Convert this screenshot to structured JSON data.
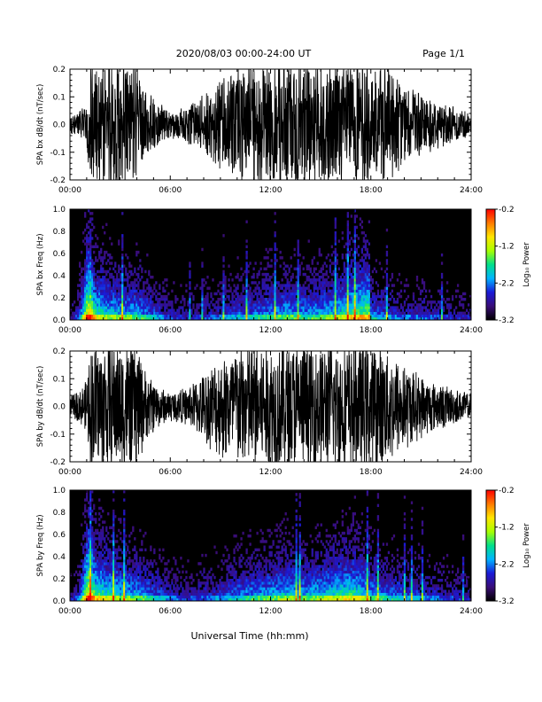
{
  "header": {
    "title": "2020/08/03  00:00-24:00 UT",
    "page": "Page 1/1"
  },
  "x_axis_label": "Universal Time (hh:mm)",
  "colors": {
    "trace": "#000000",
    "spectrogram_background": "#000000",
    "colormap": [
      "#000000",
      "#3a0d78",
      "#1a1ad8",
      "#00b4ff",
      "#00e08a",
      "#a8ff00",
      "#ffe600",
      "#ff7a00",
      "#ff0000"
    ]
  },
  "chart_data": [
    {
      "type": "line",
      "name": "bx-waveform",
      "ylabel": "SPA bx dB/dt (nT/sec)",
      "ylim": [
        -0.2,
        0.2
      ],
      "yticks": [
        "-0.2",
        "-0.1",
        "0.0",
        "0.1",
        "0.2"
      ],
      "xlim_hours": [
        0,
        24
      ],
      "xticks": [
        "00:00",
        "06:00",
        "12:00",
        "18:00",
        "24:00"
      ],
      "envelope_hours": [
        0,
        0.5,
        1,
        1.2,
        1.5,
        2,
        3,
        4,
        4.5,
        5,
        5.5,
        6,
        7,
        8,
        9,
        10,
        11,
        12,
        13,
        14,
        15,
        16,
        17,
        18,
        19,
        20,
        21,
        22,
        23,
        24
      ],
      "envelope_amplitude": [
        0.04,
        0.05,
        0.08,
        0.25,
        0.25,
        0.25,
        0.25,
        0.25,
        0.13,
        0.1,
        0.08,
        0.05,
        0.07,
        0.12,
        0.18,
        0.22,
        0.25,
        0.25,
        0.25,
        0.25,
        0.25,
        0.25,
        0.25,
        0.25,
        0.22,
        0.16,
        0.12,
        0.09,
        0.07,
        0.05
      ]
    },
    {
      "type": "heatmap",
      "name": "bx-spectrogram",
      "ylabel": "SPA bx Freq (Hz)",
      "ylim": [
        0.0,
        1.0
      ],
      "yticks": [
        "0.0",
        "0.2",
        "0.4",
        "0.6",
        "0.8",
        "1.0"
      ],
      "xlim_hours": [
        0,
        24
      ],
      "xticks": [
        "00:00",
        "06:00",
        "12:00",
        "18:00",
        "24:00"
      ],
      "colorbar": {
        "label": "Log₁₀ Power",
        "range": [
          -3.2,
          -0.2
        ],
        "ticks": [
          "-0.2",
          "-1.2",
          "-2.2",
          "-3.2"
        ]
      },
      "activity_hours": [
        0,
        0.5,
        1,
        1.2,
        1.5,
        2,
        3,
        4,
        5,
        6,
        7,
        8,
        9,
        10,
        11,
        12,
        13,
        14,
        15,
        16,
        17,
        17.9,
        18,
        19,
        20,
        21,
        22,
        23,
        24
      ],
      "activity_level": [
        0.15,
        0.3,
        0.9,
        1.0,
        0.7,
        0.65,
        0.55,
        0.55,
        0.4,
        0.25,
        0.2,
        0.25,
        0.3,
        0.4,
        0.45,
        0.5,
        0.55,
        0.5,
        0.55,
        0.6,
        0.75,
        0.8,
        0.45,
        0.35,
        0.3,
        0.3,
        0.25,
        0.2,
        0.2
      ]
    },
    {
      "type": "line",
      "name": "by-waveform",
      "ylabel": "SPA by dB/dt (nT/sec)",
      "ylim": [
        -0.2,
        0.2
      ],
      "yticks": [
        "-0.2",
        "-0.1",
        "0.0",
        "0.1",
        "0.2"
      ],
      "xlim_hours": [
        0,
        24
      ],
      "xticks": [
        "00:00",
        "06:00",
        "12:00",
        "18:00",
        "24:00"
      ],
      "envelope_hours": [
        0,
        0.5,
        1,
        1.2,
        1.5,
        2,
        3,
        4,
        4.5,
        5,
        5.5,
        6,
        7,
        8,
        9,
        10,
        11,
        12,
        13,
        14,
        15,
        16,
        17,
        18,
        19,
        20,
        21,
        22,
        23,
        24
      ],
      "envelope_amplitude": [
        0.04,
        0.06,
        0.1,
        0.25,
        0.25,
        0.25,
        0.25,
        0.25,
        0.14,
        0.1,
        0.07,
        0.06,
        0.07,
        0.13,
        0.2,
        0.24,
        0.25,
        0.25,
        0.25,
        0.25,
        0.25,
        0.25,
        0.25,
        0.25,
        0.22,
        0.17,
        0.12,
        0.09,
        0.07,
        0.05
      ]
    },
    {
      "type": "heatmap",
      "name": "by-spectrogram",
      "ylabel": "SPA by Freq (Hz)",
      "ylim": [
        0.0,
        1.0
      ],
      "yticks": [
        "0.0",
        "0.2",
        "0.4",
        "0.6",
        "0.8",
        "1.0"
      ],
      "xlim_hours": [
        0,
        24
      ],
      "xticks": [
        "00:00",
        "06:00",
        "12:00",
        "18:00",
        "24:00"
      ],
      "colorbar": {
        "label": "Log₁₀ Power",
        "range": [
          -3.2,
          -0.2
        ],
        "ticks": [
          "-0.2",
          "-1.2",
          "-2.2",
          "-3.2"
        ]
      },
      "activity_hours": [
        0,
        0.5,
        1,
        1.2,
        1.5,
        2,
        3,
        4,
        5,
        6,
        7,
        8,
        9,
        10,
        11,
        12,
        13,
        14,
        15,
        16,
        17,
        18,
        19,
        20,
        21,
        22,
        23,
        24
      ],
      "activity_level": [
        0.15,
        0.3,
        0.9,
        1.0,
        0.75,
        0.7,
        0.6,
        0.55,
        0.45,
        0.3,
        0.25,
        0.3,
        0.35,
        0.45,
        0.5,
        0.55,
        0.6,
        0.55,
        0.6,
        0.65,
        0.7,
        0.55,
        0.45,
        0.4,
        0.35,
        0.3,
        0.25,
        0.2
      ]
    }
  ]
}
